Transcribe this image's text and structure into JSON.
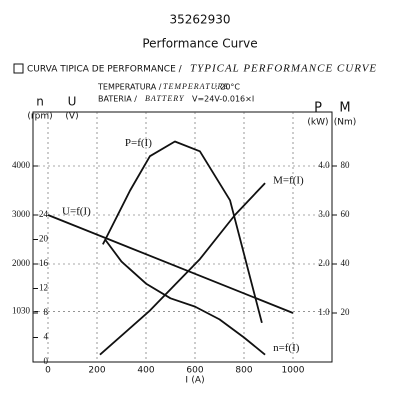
{
  "chart_data": {
    "type": "line",
    "title": "35262930",
    "subtitle": "Performance Curve",
    "heading_es": "CURVA TIPICA DE PERFORMANCE /",
    "heading_en": "TYPICAL PERFORMANCE CURVE",
    "temperature_es": "TEMPERATURA /",
    "temperature_en": "TEMPERATURE",
    "temperature_value": ": 20°C",
    "battery_es": "BATERIA /",
    "battery_en": "BATTERY",
    "battery_formula": "V=24V-0.016×I",
    "xlabel": "I",
    "xunit": "(A)",
    "xlim": [
      0,
      1200
    ],
    "xticks": [
      0,
      200,
      400,
      600,
      800,
      1000
    ],
    "ylabel": "n",
    "yunit": "(rpm)",
    "ylim": [
      0,
      5000
    ],
    "yticks": [
      1030,
      2000,
      3000,
      4000
    ],
    "y2label": "U",
    "y2unit": "(V)",
    "y2lim": [
      0,
      40
    ],
    "y2ticks": [
      0,
      4,
      8,
      12,
      16,
      20,
      24
    ],
    "y3label": "P",
    "y3unit": "(kW)",
    "y3lim": [
      0,
      5
    ],
    "y3ticks": [
      {
        "value": 1,
        "label": "1.0"
      },
      {
        "value": 2,
        "label": "2.0"
      },
      {
        "value": 3,
        "label": "3.0"
      },
      {
        "value": 4,
        "label": "4.0"
      }
    ],
    "y4label": "M",
    "y4unit": "(Nm)",
    "y4lim": [
      0,
      100
    ],
    "y4ticks": [
      20,
      40,
      60,
      80
    ],
    "grid": true,
    "series": [
      {
        "name": "P=f(I)",
        "color": "#111111",
        "axis": "y3",
        "x": [
          224,
          335,
          416,
          518,
          620,
          743,
          873
        ],
        "values": [
          2.4,
          3.5,
          4.2,
          4.5,
          4.3,
          3.3,
          0.8
        ]
      },
      {
        "name": "U=f(I)",
        "color": "#111111",
        "axis": "y2",
        "x": [
          0,
          1000
        ],
        "values": [
          24,
          8
        ]
      },
      {
        "name": "n=f(I)",
        "color": "#111111",
        "axis": "y",
        "x": [
          233,
          300,
          400,
          500,
          600,
          700,
          800,
          886
        ],
        "values": [
          2500,
          2050,
          1600,
          1300,
          1130,
          870,
          500,
          150
        ]
      },
      {
        "name": "M=f(I)",
        "color": "#111111",
        "axis": "y4",
        "x": [
          212,
          416,
          620,
          763,
          886
        ],
        "values": [
          3,
          21,
          42,
          60,
          73
        ]
      }
    ]
  }
}
